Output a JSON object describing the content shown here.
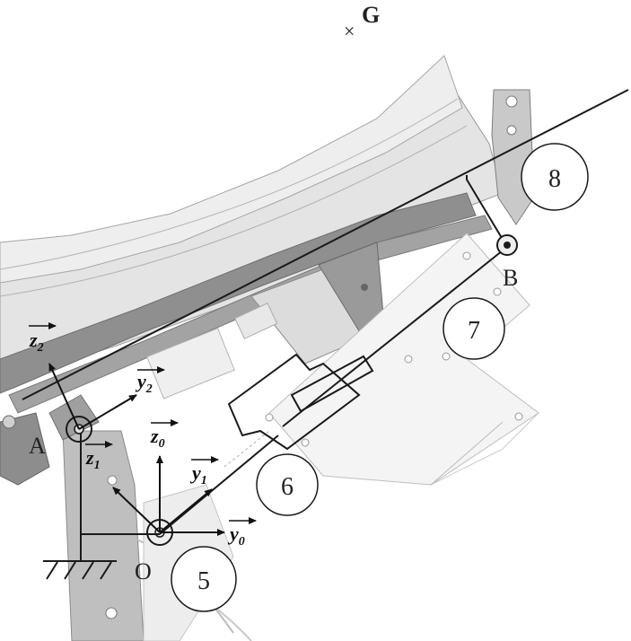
{
  "labels": {
    "G": "G",
    "A": "A",
    "B": "B",
    "O": "O"
  },
  "axes": {
    "z2": {
      "base": "z",
      "sub": "2"
    },
    "y2": {
      "base": "y",
      "sub": "2"
    },
    "z1": {
      "base": "z",
      "sub": "1"
    },
    "z0": {
      "base": "z",
      "sub": "0"
    },
    "y1": {
      "base": "y",
      "sub": "1"
    },
    "y0": {
      "base": "y",
      "sub": "0"
    }
  },
  "callouts": {
    "c5": "5",
    "c6": "6",
    "c7": "7",
    "c8": "8"
  },
  "colors": {
    "background": "#ffffff",
    "cad_light": "#e6e6e6",
    "cad_mid": "#bdbdbd",
    "cad_dark": "#8a8a8a",
    "ink": "#1a1a1a"
  }
}
